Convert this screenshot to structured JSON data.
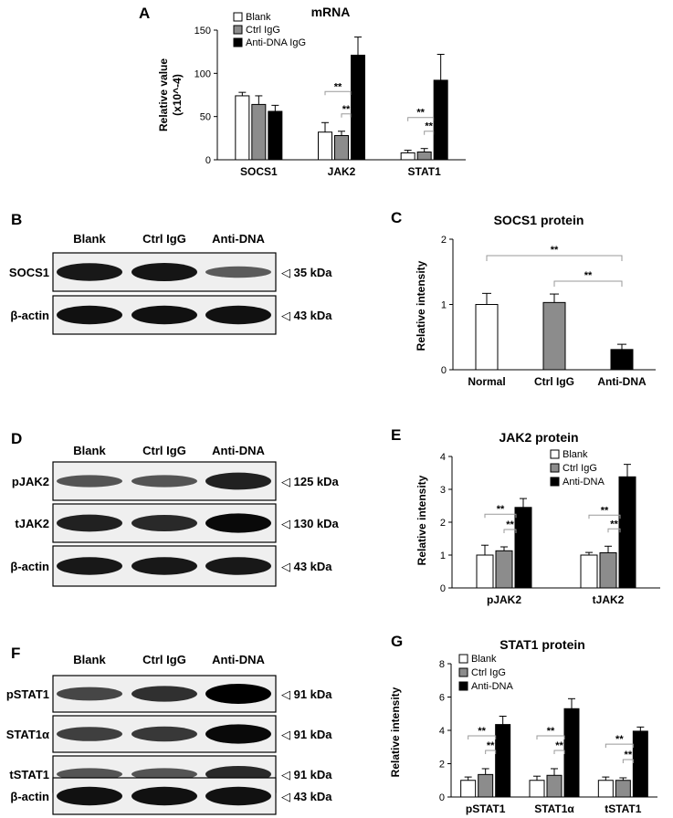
{
  "panels": {
    "A": {
      "label": "A",
      "chart_data": {
        "type": "bar",
        "title": "mRNA",
        "ylabel": "Relative value\n(x10^-4)",
        "ylim": [
          0,
          150
        ],
        "yticks": [
          0,
          50,
          100,
          150
        ],
        "categories": [
          "SOCS1",
          "JAK2",
          "STAT1"
        ],
        "series": [
          {
            "name": "Blank",
            "values": [
              74,
              32,
              8
            ],
            "errors": [
              4,
              11,
              3
            ],
            "color": "#ffffff"
          },
          {
            "name": "Ctrl IgG",
            "values": [
              64,
              28,
              9
            ],
            "errors": [
              10,
              5,
              4
            ],
            "color": "#8c8c8c"
          },
          {
            "name": "Anti-DNA IgG",
            "values": [
              56,
              121,
              92
            ],
            "errors": [
              7,
              21,
              30
            ],
            "color": "#000000"
          }
        ],
        "legend": "top-left",
        "annotations": [
          {
            "cat": 1,
            "from": 0,
            "to": 2,
            "text": "**"
          },
          {
            "cat": 1,
            "from": 1,
            "to": 2,
            "text": "**"
          },
          {
            "cat": 2,
            "from": 0,
            "to": 2,
            "text": "**"
          },
          {
            "cat": 2,
            "from": 1,
            "to": 2,
            "text": "**"
          }
        ]
      }
    },
    "B": {
      "label": "B",
      "lanes": [
        "Blank",
        "Ctrl IgG",
        "Anti-DNA"
      ],
      "rows": [
        {
          "name": "SOCS1",
          "kda": "◁ 35 kDa",
          "intensity": [
            0.85,
            0.88,
            0.4
          ]
        },
        {
          "name": "β-actin",
          "kda": "◁ 43 kDa",
          "intensity": [
            0.9,
            0.9,
            0.9
          ]
        }
      ]
    },
    "C": {
      "label": "C",
      "chart_data": {
        "type": "bar",
        "title": "SOCS1 protein",
        "ylabel": "Relative intensity",
        "ylim": [
          0,
          2
        ],
        "yticks": [
          0,
          1,
          2
        ],
        "categories": [
          "Normal",
          "Ctrl IgG",
          "Anti-DNA"
        ],
        "values": [
          1.0,
          1.03,
          0.31
        ],
        "errors": [
          0.17,
          0.13,
          0.08
        ],
        "colors": [
          "#ffffff",
          "#8c8c8c",
          "#000000"
        ],
        "annotations": [
          {
            "from": 0,
            "to": 2,
            "text": "**"
          },
          {
            "from": 1,
            "to": 2,
            "text": "**"
          }
        ]
      }
    },
    "D": {
      "label": "D",
      "lanes": [
        "Blank",
        "Ctrl IgG",
        "Anti-DNA"
      ],
      "rows": [
        {
          "name": "pJAK2",
          "kda": "◁ 125 kDa",
          "intensity": [
            0.45,
            0.45,
            0.8
          ]
        },
        {
          "name": "tJAK2",
          "kda": "◁ 130 kDa",
          "intensity": [
            0.8,
            0.75,
            0.95
          ]
        },
        {
          "name": "β-actin",
          "kda": "◁ 43 kDa",
          "intensity": [
            0.85,
            0.85,
            0.85
          ]
        }
      ]
    },
    "E": {
      "label": "E",
      "chart_data": {
        "type": "bar",
        "title": "JAK2 protein",
        "ylabel": "Relative intensity",
        "ylim": [
          0,
          4
        ],
        "yticks": [
          0,
          1,
          2,
          3,
          4
        ],
        "categories": [
          "pJAK2",
          "tJAK2"
        ],
        "series": [
          {
            "name": "Blank",
            "values": [
              1.0,
              1.0
            ],
            "errors": [
              0.3,
              0.08
            ],
            "color": "#ffffff"
          },
          {
            "name": "Ctrl IgG",
            "values": [
              1.13,
              1.07
            ],
            "errors": [
              0.12,
              0.2
            ],
            "color": "#8c8c8c"
          },
          {
            "name": "Anti-DNA",
            "values": [
              2.45,
              3.38
            ],
            "errors": [
              0.27,
              0.38
            ],
            "color": "#000000"
          }
        ],
        "legend": "top-right",
        "annotations": [
          {
            "cat": 0,
            "from": 0,
            "to": 2,
            "text": "**"
          },
          {
            "cat": 0,
            "from": 1,
            "to": 2,
            "text": "**"
          },
          {
            "cat": 1,
            "from": 0,
            "to": 2,
            "text": "**"
          },
          {
            "cat": 1,
            "from": 1,
            "to": 2,
            "text": "**"
          }
        ]
      }
    },
    "F": {
      "label": "F",
      "lanes": [
        "Blank",
        "Ctrl IgG",
        "Anti-DNA"
      ],
      "rows": [
        {
          "name": "pSTAT1",
          "kda": "◁ 91 kDa",
          "intensity": [
            0.55,
            0.7,
            1.0
          ]
        },
        {
          "name": "STAT1α",
          "kda": "◁ 91 kDa",
          "intensity": [
            0.6,
            0.65,
            0.95
          ]
        },
        {
          "name": "tSTAT1",
          "kda": "◁ 91 kDa",
          "intensity": [
            0.45,
            0.45,
            0.75
          ]
        },
        {
          "name": "β-actin",
          "kda": "◁ 43 kDa",
          "intensity": [
            0.9,
            0.9,
            0.9
          ]
        }
      ]
    },
    "G": {
      "label": "G",
      "chart_data": {
        "type": "bar",
        "title": "STAT1 protein",
        "ylabel": "Relative intensity",
        "ylim": [
          0,
          8
        ],
        "yticks": [
          0,
          2,
          4,
          6,
          8
        ],
        "categories": [
          "pSTAT1",
          "STAT1α",
          "tSTAT1"
        ],
        "series": [
          {
            "name": "Blank",
            "values": [
              1.0,
              1.0,
              1.0
            ],
            "errors": [
              0.2,
              0.25,
              0.2
            ],
            "color": "#ffffff"
          },
          {
            "name": "Ctrl IgG",
            "values": [
              1.35,
              1.3,
              1.0
            ],
            "errors": [
              0.35,
              0.4,
              0.15
            ],
            "color": "#8c8c8c"
          },
          {
            "name": "Anti-DNA",
            "values": [
              4.35,
              5.3,
              3.95
            ],
            "errors": [
              0.5,
              0.6,
              0.25
            ],
            "color": "#000000"
          }
        ],
        "legend": "top-left",
        "annotations": [
          {
            "cat": 0,
            "from": 0,
            "to": 2,
            "text": "**"
          },
          {
            "cat": 0,
            "from": 1,
            "to": 2,
            "text": "**"
          },
          {
            "cat": 1,
            "from": 0,
            "to": 2,
            "text": "**"
          },
          {
            "cat": 1,
            "from": 1,
            "to": 2,
            "text": "**"
          },
          {
            "cat": 2,
            "from": 0,
            "to": 2,
            "text": "**"
          },
          {
            "cat": 2,
            "from": 1,
            "to": 2,
            "text": "**"
          }
        ]
      }
    }
  }
}
